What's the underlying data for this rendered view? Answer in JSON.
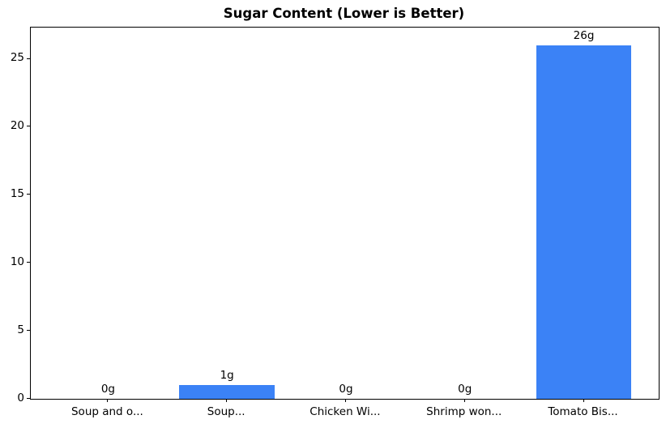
{
  "colors": {
    "bar": "#3b82f6",
    "axis": "#000000",
    "text": "#000000",
    "background": "#ffffff"
  },
  "chart_data": {
    "type": "bar",
    "title": "Sugar Content (Lower is Better)",
    "categories": [
      "Soup and o...",
      "Soup...",
      "Chicken Wi...",
      "Shrimp won...",
      "Tomato Bis..."
    ],
    "values": [
      0,
      1,
      0,
      0,
      26
    ],
    "bar_labels": [
      "0g",
      "1g",
      "0g",
      "0g",
      "26g"
    ],
    "xlabel": "",
    "ylabel": "",
    "yticks": [
      0,
      5,
      10,
      15,
      20,
      25
    ],
    "ylim": [
      0,
      27.3
    ],
    "xlim": [
      -0.65,
      4.63
    ],
    "bar_width": 0.8,
    "grid": false,
    "legend_position": "none"
  }
}
